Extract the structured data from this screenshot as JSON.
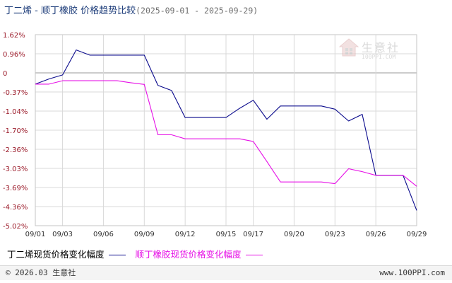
{
  "title": {
    "main": "丁二烯 - 顺丁橡胶 价格趋势比较",
    "date_range": "(2025-09-01 - 2025-09-29)"
  },
  "colors": {
    "series1": "#0a0a8c",
    "series2": "#e60fe6",
    "grid": "#d9d9d9",
    "zero_line": "#9a9a9a",
    "axis_label": "#9b1b2a",
    "title": "#1a3a78"
  },
  "watermark": {
    "text": "生意社",
    "sub": "100PPI.COM",
    "icon": "house-logo-icon"
  },
  "legend": [
    {
      "label": "丁二烯现货价格变化幅度",
      "color": "#0a0a8c"
    },
    {
      "label": "顺丁橡胶现货价格变化幅度",
      "color": "#e60fe6"
    }
  ],
  "footer": {
    "copyright": "© 2026.03 生意社",
    "url": "www.100PPI.com"
  },
  "chart_data": {
    "type": "line",
    "title": "丁二烯 - 顺丁橡胶 价格趋势比较",
    "xlabel": "",
    "ylabel": "",
    "x": [
      "09/01",
      "09/02",
      "09/03",
      "09/04",
      "09/05",
      "09/06",
      "09/07",
      "09/08",
      "09/09",
      "09/10",
      "09/11",
      "09/12",
      "09/13",
      "09/14",
      "09/15",
      "09/16",
      "09/17",
      "09/18",
      "09/19",
      "09/20",
      "09/21",
      "09/22",
      "09/23",
      "09/24",
      "09/25",
      "09/26",
      "09/27",
      "09/28",
      "09/29"
    ],
    "x_ticks": [
      "09/01",
      "09/03",
      "09/06",
      "09/09",
      "09/12",
      "09/15",
      "09/17",
      "09/20",
      "09/23",
      "09/26",
      "09/29"
    ],
    "y_ticks": [
      "1.62%",
      "0.96%",
      "0",
      "-0.37%",
      "-1.04%",
      "-1.70%",
      "-2.36%",
      "-3.03%",
      "-3.69%",
      "-4.36%",
      "-5.02%"
    ],
    "ylim": [
      -5.02,
      1.62
    ],
    "grid": true,
    "legend_position": "bottom-left",
    "series": [
      {
        "name": "丁二烯现货价格变化幅度",
        "values": [
          -0.1,
          0.08,
          0.22,
          1.09,
          0.91,
          0.91,
          0.91,
          0.91,
          0.91,
          -0.14,
          -0.32,
          -1.26,
          -1.26,
          -1.26,
          -1.26,
          -0.94,
          -0.66,
          -1.32,
          -0.86,
          -0.86,
          -0.86,
          -0.86,
          -0.97,
          -1.38,
          -1.15,
          -3.27,
          -3.27,
          -3.27,
          -4.49
        ]
      },
      {
        "name": "顺丁橡胶现货价格变化幅度",
        "values": [
          -0.1,
          -0.1,
          0.02,
          0.02,
          0.02,
          0.02,
          0.02,
          -0.05,
          -0.11,
          -1.86,
          -1.86,
          -2.0,
          -2.0,
          -2.0,
          -2.0,
          -2.0,
          -2.09,
          -2.79,
          -3.5,
          -3.5,
          -3.5,
          -3.5,
          -3.56,
          -3.04,
          -3.14,
          -3.27,
          -3.27,
          -3.27,
          -3.65
        ]
      }
    ]
  }
}
